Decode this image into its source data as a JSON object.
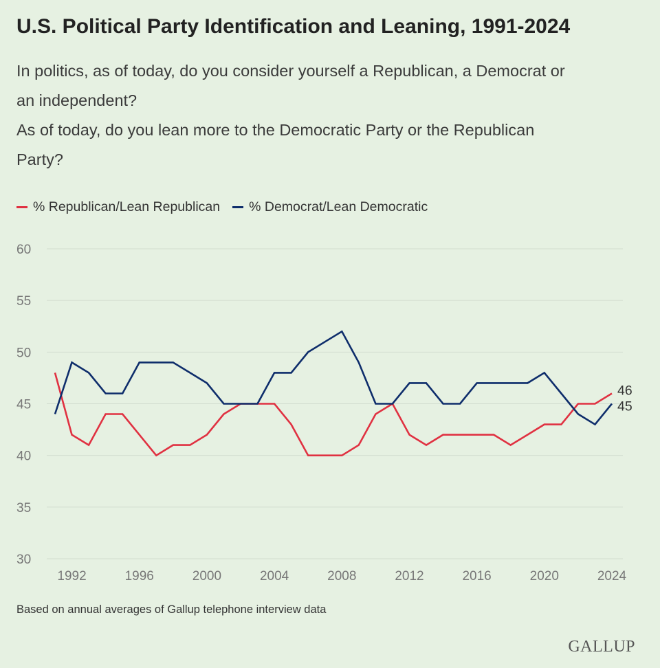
{
  "title": "U.S. Political Party Identification and Leaning, 1991-2024",
  "question": {
    "line1": "In politics, as of today, do you consider yourself a Republican, a Democrat or",
    "line2": "an independent?",
    "line3": "As of today, do you lean more to the Democratic Party or the Republican",
    "line4": "Party?"
  },
  "note": "Based on annual averages of Gallup telephone interview data",
  "logo": "GALLUP",
  "colors": {
    "republican": "#e03141",
    "democrat": "#0e2d6b",
    "grid": "#d2ddcf",
    "tick": "#777777"
  },
  "chart_data": {
    "type": "line",
    "x": [
      1991,
      1992,
      1993,
      1994,
      1995,
      1996,
      1997,
      1998,
      1999,
      2000,
      2001,
      2002,
      2003,
      2004,
      2005,
      2006,
      2007,
      2008,
      2009,
      2010,
      2011,
      2012,
      2013,
      2014,
      2015,
      2016,
      2017,
      2018,
      2019,
      2020,
      2021,
      2022,
      2023,
      2024
    ],
    "series": [
      {
        "name": "% Republican/Lean Republican",
        "color": "#e03141",
        "values": [
          48,
          42,
          41,
          44,
          44,
          42,
          40,
          41,
          41,
          42,
          44,
          45,
          45,
          45,
          43,
          40,
          40,
          40,
          41,
          44,
          45,
          42,
          41,
          42,
          42,
          42,
          42,
          41,
          42,
          43,
          43,
          45,
          45,
          46
        ]
      },
      {
        "name": "% Democrat/Lean Democratic",
        "color": "#0e2d6b",
        "values": [
          44,
          49,
          48,
          46,
          46,
          49,
          49,
          49,
          48,
          47,
          45,
          45,
          45,
          48,
          48,
          50,
          51,
          52,
          49,
          45,
          45,
          47,
          47,
          45,
          45,
          47,
          47,
          47,
          47,
          48,
          46,
          44,
          43,
          45
        ]
      }
    ],
    "end_labels": [
      "46",
      "45"
    ],
    "xticks": [
      "1992",
      "1996",
      "2000",
      "2004",
      "2008",
      "2012",
      "2016",
      "2020",
      "2024"
    ],
    "xtick_values": [
      1992,
      1996,
      2000,
      2004,
      2008,
      2012,
      2016,
      2020,
      2024
    ],
    "yticks": [
      "30",
      "35",
      "40",
      "45",
      "50",
      "55",
      "60"
    ],
    "ylim": [
      30,
      60
    ],
    "grid": true,
    "legend_position": "top-left"
  }
}
